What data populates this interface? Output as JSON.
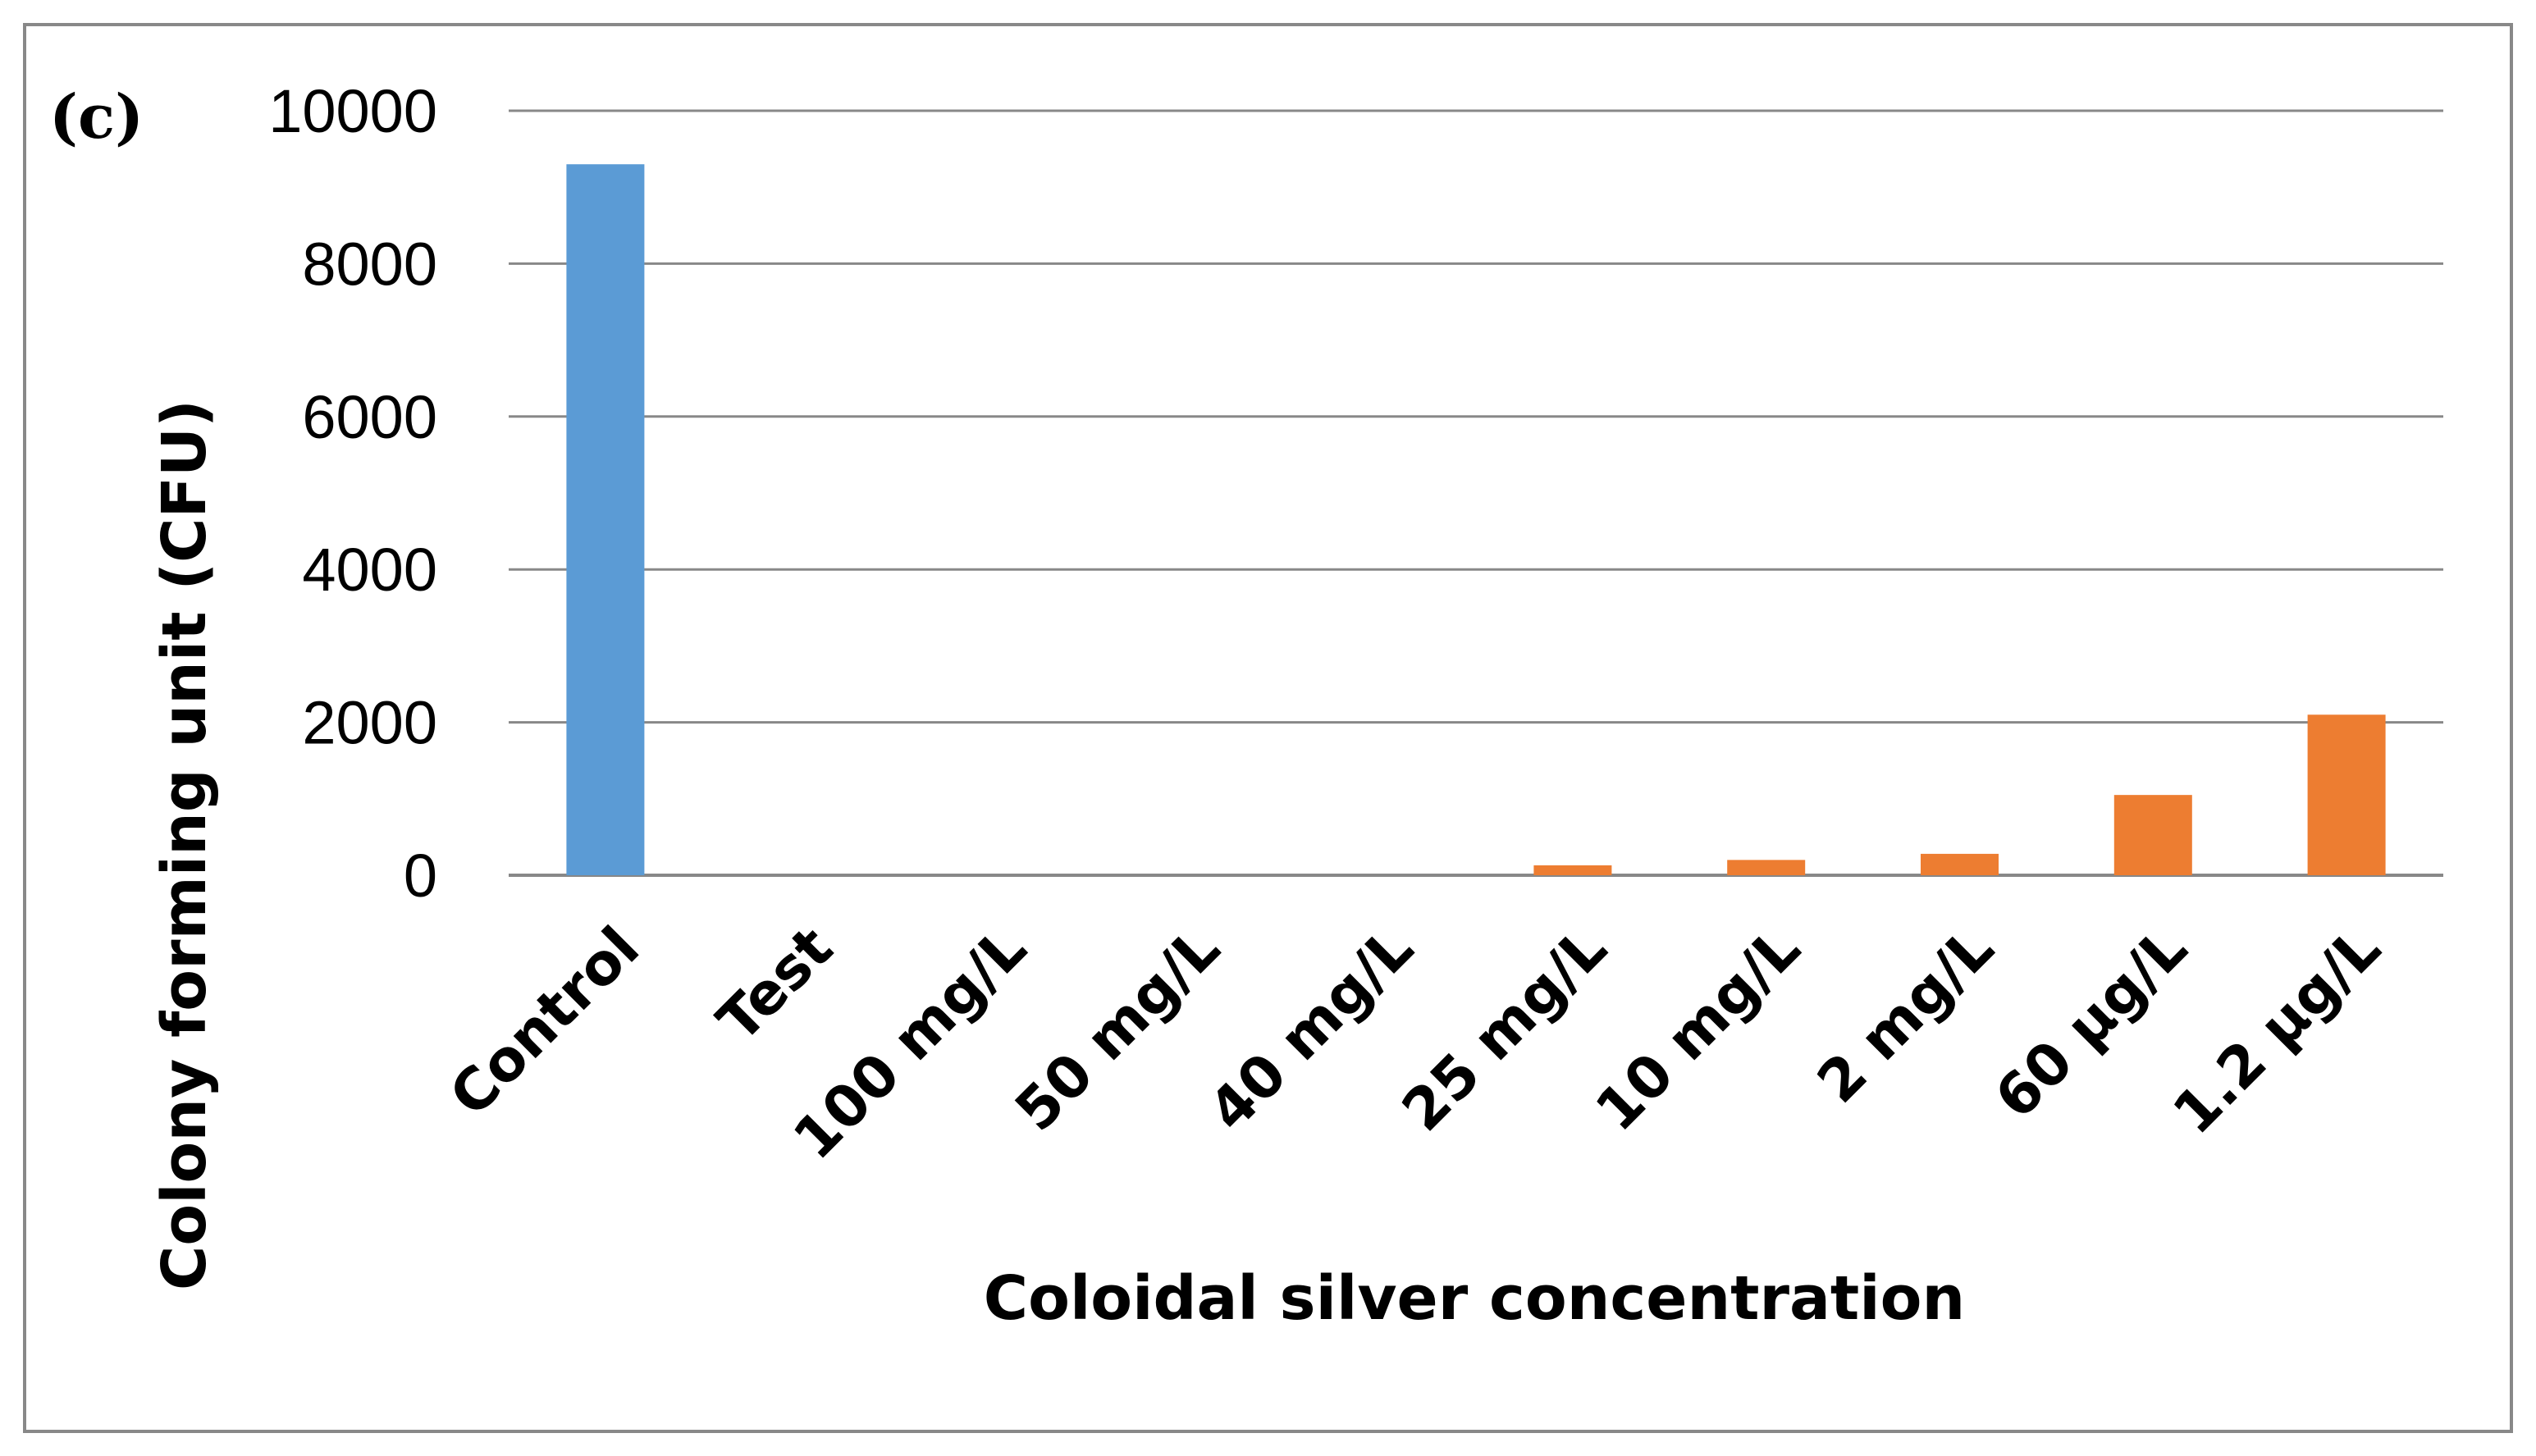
{
  "panel_label": "(c)",
  "chart_data": {
    "type": "bar",
    "categories": [
      "Control",
      "Test",
      "100 mg/L",
      "50 mg/L",
      "40 mg/L",
      "25 mg/L",
      "10 mg/L",
      "2 mg/L",
      "60 µg/L",
      "1.2 µg/L"
    ],
    "values": [
      9300,
      0,
      0,
      0,
      0,
      130,
      200,
      280,
      1050,
      2100
    ],
    "bar_colors": [
      "#5b9bd5",
      "#ed7d31",
      "#ed7d31",
      "#ed7d31",
      "#ed7d31",
      "#ed7d31",
      "#ed7d31",
      "#ed7d31",
      "#ed7d31",
      "#ed7d31"
    ],
    "xlabel": "Coloidal silver concentration",
    "ylabel": "Colony forming unit (CFU)",
    "ylim": [
      0,
      10000
    ],
    "yticks": [
      0,
      2000,
      4000,
      6000,
      8000,
      10000
    ],
    "grid": true,
    "gridline_color": "#888888"
  }
}
